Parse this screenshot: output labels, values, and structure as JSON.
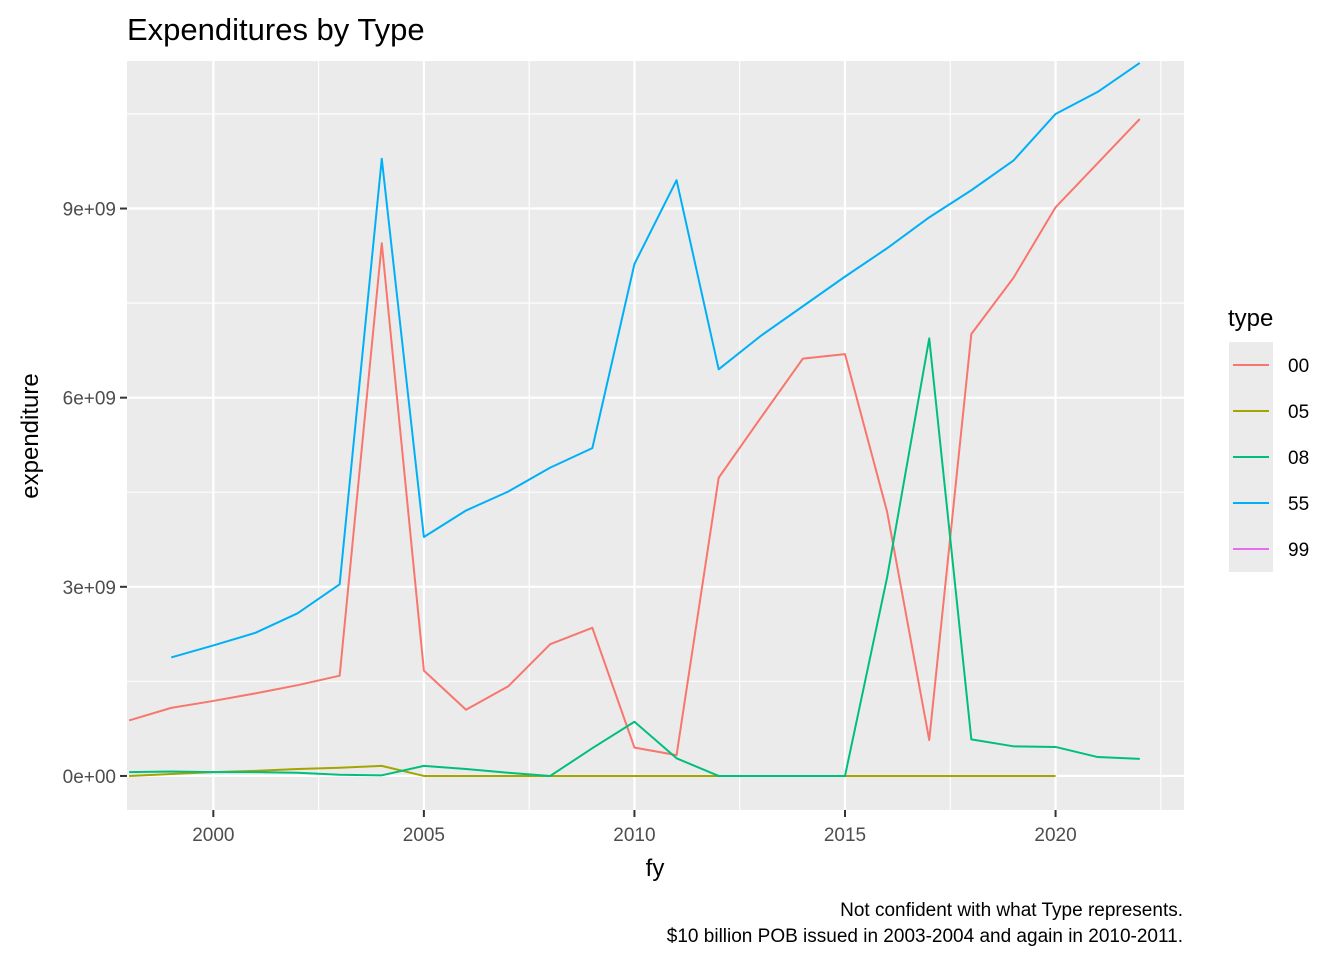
{
  "chart_data": {
    "type": "line",
    "title": "Expenditures by Type",
    "xlabel": "fy",
    "ylabel": "expenditure",
    "xlim": [
      1997.95,
      2023.05
    ],
    "ylim": [
      -540000000,
      11340000000
    ],
    "x_ticks": [
      2000,
      2005,
      2010,
      2015,
      2020
    ],
    "x_tick_labels": [
      "2000",
      "2005",
      "2010",
      "2015",
      "2020"
    ],
    "y_ticks": [
      0,
      3000000000,
      6000000000,
      9000000000
    ],
    "y_tick_labels": [
      "0e+00",
      "3e+09",
      "6e+09",
      "9e+09"
    ],
    "grid": true,
    "legend_title": "type",
    "legend_position": "right",
    "caption_lines": [
      "Not confident with what Type represents.",
      "$10 billion POB issued in 2003-2004 and again in 2010-2011."
    ],
    "series": [
      {
        "name": "00",
        "color": "#F8766D",
        "points": [
          [
            1998,
            880000000
          ],
          [
            1999,
            1080000000
          ],
          [
            2000,
            1190000000
          ],
          [
            2001,
            1310000000
          ],
          [
            2002,
            1440000000
          ],
          [
            2003,
            1590000000
          ],
          [
            2004,
            8450000000
          ],
          [
            2005,
            1670000000
          ],
          [
            2006,
            1050000000
          ],
          [
            2007,
            1420000000
          ],
          [
            2008,
            2090000000
          ],
          [
            2009,
            2350000000
          ],
          [
            2010,
            450000000
          ],
          [
            2011,
            330000000
          ],
          [
            2012,
            4730000000
          ],
          [
            2013,
            5680000000
          ],
          [
            2014,
            6620000000
          ],
          [
            2015,
            6690000000
          ],
          [
            2016,
            4190000000
          ],
          [
            2017,
            570000000
          ],
          [
            2018,
            7010000000
          ],
          [
            2019,
            7900000000
          ],
          [
            2020,
            9020000000
          ],
          [
            2021,
            9720000000
          ],
          [
            2022,
            10420000000
          ]
        ]
      },
      {
        "name": "05",
        "color": "#A3A500",
        "points": [
          [
            1998,
            0
          ],
          [
            1999,
            30000000
          ],
          [
            2000,
            60000000
          ],
          [
            2001,
            80000000
          ],
          [
            2002,
            110000000
          ],
          [
            2003,
            130000000
          ],
          [
            2004,
            160000000
          ],
          [
            2005,
            0
          ],
          [
            2006,
            0
          ],
          [
            2007,
            0
          ],
          [
            2008,
            0
          ],
          [
            2009,
            0
          ],
          [
            2010,
            0
          ],
          [
            2011,
            0
          ],
          [
            2012,
            0
          ],
          [
            2013,
            0
          ],
          [
            2014,
            0
          ],
          [
            2015,
            0
          ],
          [
            2016,
            0
          ],
          [
            2017,
            0
          ],
          [
            2018,
            0
          ],
          [
            2019,
            0
          ],
          [
            2020,
            0
          ]
        ]
      },
      {
        "name": "08",
        "color": "#00BF7D",
        "points": [
          [
            1998,
            60000000
          ],
          [
            1999,
            70000000
          ],
          [
            2000,
            60000000
          ],
          [
            2001,
            60000000
          ],
          [
            2002,
            50000000
          ],
          [
            2003,
            20000000
          ],
          [
            2004,
            10000000
          ],
          [
            2005,
            160000000
          ],
          [
            2006,
            110000000
          ],
          [
            2007,
            50000000
          ],
          [
            2008,
            0
          ],
          [
            2009,
            440000000
          ],
          [
            2010,
            860000000
          ],
          [
            2011,
            280000000
          ],
          [
            2012,
            0
          ],
          [
            2013,
            0
          ],
          [
            2014,
            0
          ],
          [
            2015,
            0
          ],
          [
            2016,
            3150000000
          ],
          [
            2017,
            6940000000
          ],
          [
            2018,
            580000000
          ],
          [
            2019,
            470000000
          ],
          [
            2020,
            460000000
          ],
          [
            2021,
            300000000
          ],
          [
            2022,
            270000000
          ]
        ]
      },
      {
        "name": "55",
        "color": "#00B0F6",
        "points": [
          [
            1999,
            1880000000
          ],
          [
            2000,
            2070000000
          ],
          [
            2001,
            2270000000
          ],
          [
            2002,
            2580000000
          ],
          [
            2003,
            3040000000
          ],
          [
            2004,
            9790000000
          ],
          [
            2005,
            3790000000
          ],
          [
            2006,
            4210000000
          ],
          [
            2007,
            4510000000
          ],
          [
            2008,
            4890000000
          ],
          [
            2009,
            5200000000
          ],
          [
            2010,
            8120000000
          ],
          [
            2011,
            9450000000
          ],
          [
            2012,
            6450000000
          ],
          [
            2013,
            6980000000
          ],
          [
            2014,
            7450000000
          ],
          [
            2015,
            7920000000
          ],
          [
            2016,
            8370000000
          ],
          [
            2017,
            8860000000
          ],
          [
            2018,
            9290000000
          ],
          [
            2019,
            9760000000
          ],
          [
            2020,
            10500000000
          ],
          [
            2021,
            10850000000
          ],
          [
            2022,
            11310000000
          ]
        ]
      },
      {
        "name": "99",
        "color": "#E76BF3",
        "points": []
      }
    ]
  }
}
